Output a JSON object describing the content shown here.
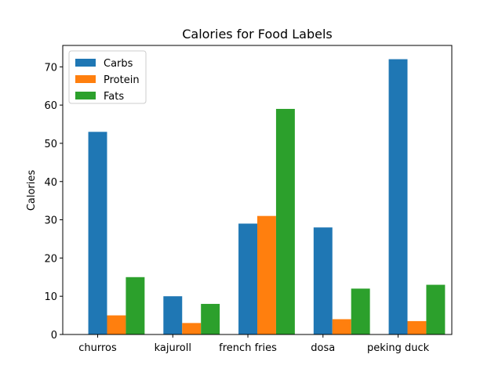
{
  "chart_data": {
    "type": "bar",
    "title": "Calories for Food Labels",
    "xlabel": "",
    "ylabel": "Calories",
    "categories": [
      "churros",
      "kajuroll",
      "french fries",
      "dosa",
      "peking duck"
    ],
    "series": [
      {
        "name": "Carbs",
        "color": "#1f77b4",
        "values": [
          53,
          10,
          29,
          28,
          72
        ]
      },
      {
        "name": "Protein",
        "color": "#ff7f0e",
        "values": [
          5,
          3,
          31,
          4,
          3.5
        ]
      },
      {
        "name": "Fats",
        "color": "#2ca02c",
        "values": [
          15,
          8,
          59,
          12,
          13
        ]
      }
    ],
    "ylim": [
      0,
      75.6
    ],
    "yticks": [
      0,
      10,
      20,
      30,
      40,
      50,
      60,
      70
    ],
    "legend_position": "upper-left",
    "grid": false
  }
}
